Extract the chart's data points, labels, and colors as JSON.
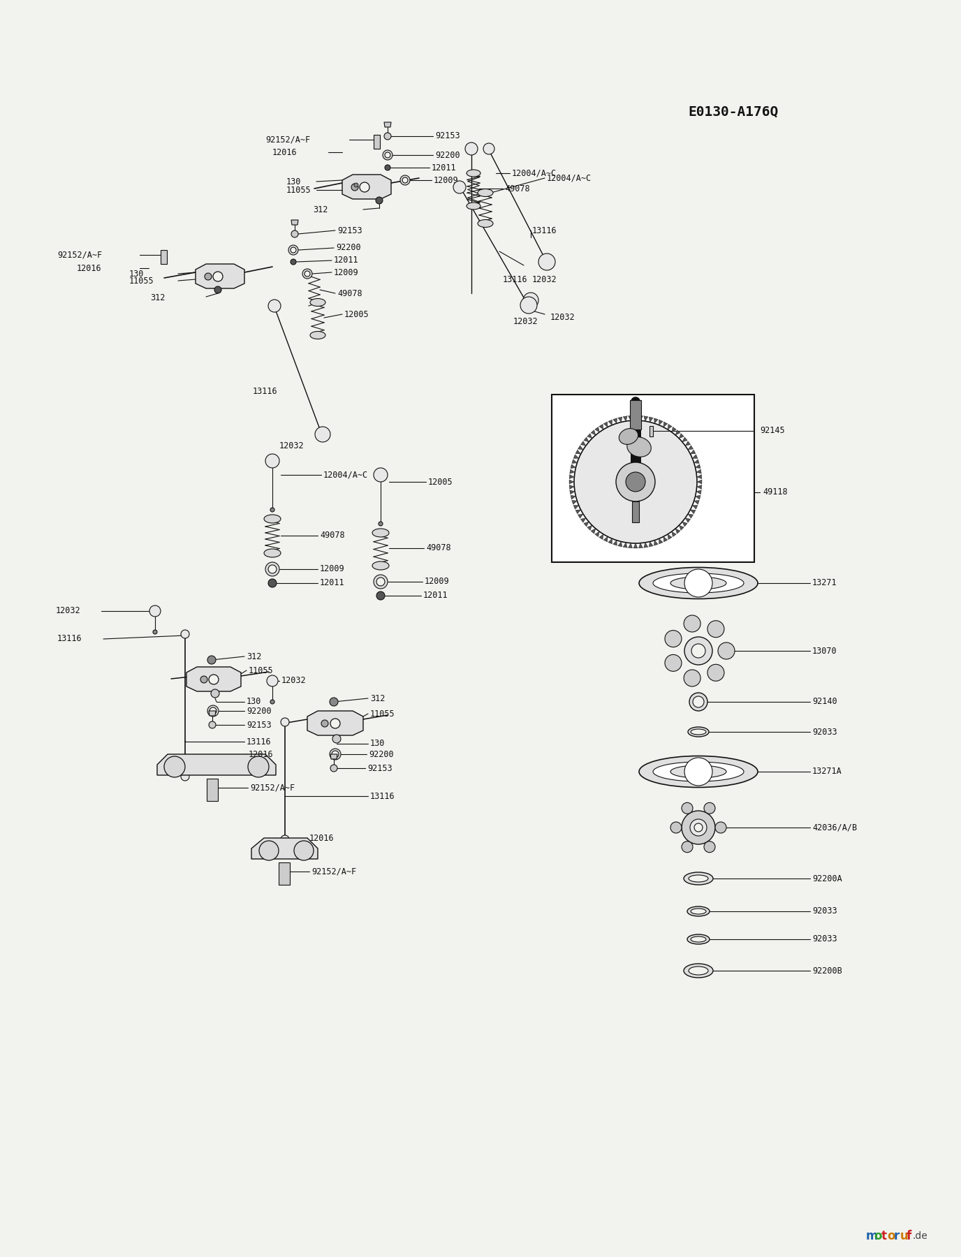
{
  "bg_color": "#f2f2ee",
  "line_color": "#111111",
  "text_color": "#111111",
  "label_fontsize": 8.5,
  "title": "E0130-A176Q",
  "watermark_colors": [
    "#1a5fa8",
    "#2e9e2e",
    "#cc2222",
    "#cc7700",
    "#1a5fa8",
    "#cc7700",
    "#cc2222"
  ],
  "watermark_letters": [
    "m",
    "o",
    "t",
    "o",
    "r",
    "u",
    "f"
  ]
}
